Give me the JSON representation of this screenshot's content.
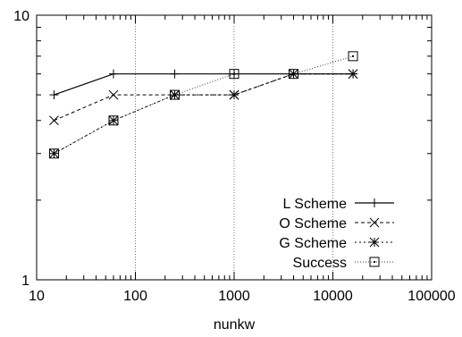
{
  "chart_data": {
    "type": "line",
    "title": "",
    "xlabel": "nunkw",
    "ylabel": "",
    "xscale": "log",
    "yscale": "log",
    "xlim": [
      10,
      100000
    ],
    "ylim": [
      1,
      10
    ],
    "x_ticks": [
      "10",
      "100",
      "1000",
      "10000",
      "100000"
    ],
    "y_ticks": [
      "1",
      "10"
    ],
    "grid": "vertical dotted at major x ticks",
    "legend_position": "bottom-right",
    "x": [
      15,
      60,
      250,
      1000,
      4000,
      16000
    ],
    "series": [
      {
        "name": "L Scheme",
        "marker": "plus",
        "dash": "solid",
        "values": [
          5,
          6,
          6,
          6,
          6,
          6
        ]
      },
      {
        "name": "O Scheme",
        "marker": "x",
        "dash": "dashed",
        "values": [
          4,
          5,
          5,
          5,
          6,
          6
        ]
      },
      {
        "name": "G Scheme",
        "marker": "star",
        "dash": "dotted",
        "values": [
          3,
          4,
          5,
          5,
          6,
          6
        ]
      },
      {
        "name": "Success",
        "marker": "square",
        "dash": "finedotted",
        "values": [
          3,
          4,
          5,
          6,
          6,
          7
        ]
      }
    ]
  }
}
